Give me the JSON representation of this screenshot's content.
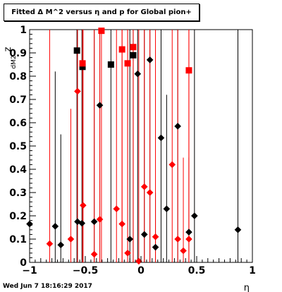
{
  "title": "Fitted Δ M^2 versus η and p for Global pion+",
  "timestamp": "Wed Jun  7 18:16:29 2017",
  "chart_data": {
    "type": "scatter",
    "xlabel": "η",
    "ylabel": "z_dM2",
    "ylabel_main": "z",
    "ylabel_sub": "dM2",
    "xlim": [
      -1.0,
      1.0
    ],
    "ylim": [
      0.0,
      1.0
    ],
    "x_ticks": [
      -1,
      -0.5,
      0,
      0.5,
      1
    ],
    "x_tick_labels": [
      "−1",
      "−0.5",
      "0",
      "0.5",
      "1"
    ],
    "y_ticks": [
      0,
      0.1,
      0.2,
      0.3,
      0.4,
      0.5,
      0.6,
      0.7,
      0.8,
      0.9,
      1
    ],
    "y_tick_labels": [
      "0",
      "0.1",
      "0.2",
      "0.3",
      "0.4",
      "0.5",
      "0.6",
      "0.7",
      "0.8",
      "0.9",
      "1"
    ],
    "grid": false,
    "colors": {
      "black": "#000000",
      "red": "#ff0000"
    },
    "series": [
      {
        "color": "#000000",
        "marker": "diamond",
        "points": [
          {
            "x": -1.0,
            "y": 0.165,
            "lo": 0.0,
            "hi": 0.165
          },
          {
            "x": -0.77,
            "y": 0.155,
            "lo": 0.0,
            "hi": 0.82
          },
          {
            "x": -0.72,
            "y": 0.075,
            "lo": 0.0,
            "hi": 0.55
          },
          {
            "x": -0.57,
            "y": 0.175,
            "lo": 0.0,
            "hi": 1.0
          },
          {
            "x": -0.53,
            "y": 0.168,
            "lo": 0.0,
            "hi": 1.0
          },
          {
            "x": -0.42,
            "y": 0.175,
            "lo": 0.0,
            "hi": 1.0
          },
          {
            "x": -0.37,
            "y": 0.675,
            "lo": 0.0,
            "hi": 1.0
          },
          {
            "x": -0.1,
            "y": 0.1,
            "lo": 0.0,
            "hi": 1.0
          },
          {
            "x": -0.03,
            "y": 0.81,
            "lo": 0.0,
            "hi": 1.0
          },
          {
            "x": 0.03,
            "y": 0.12,
            "lo": 0.0,
            "hi": 1.0
          },
          {
            "x": 0.08,
            "y": 0.87,
            "lo": 0.0,
            "hi": 1.0
          },
          {
            "x": 0.13,
            "y": 0.065,
            "lo": 0.0,
            "hi": 0.3
          },
          {
            "x": 0.18,
            "y": 0.535,
            "lo": 0.0,
            "hi": 1.0
          },
          {
            "x": 0.23,
            "y": 0.23,
            "lo": 0.0,
            "hi": 0.72
          },
          {
            "x": 0.33,
            "y": 0.585,
            "lo": 0.0,
            "hi": 1.0
          },
          {
            "x": 0.43,
            "y": 0.13,
            "lo": 0.0,
            "hi": 0.45
          },
          {
            "x": 0.48,
            "y": 0.2,
            "lo": 0.0,
            "hi": 1.0
          },
          {
            "x": 0.87,
            "y": 0.14,
            "lo": 0.0,
            "hi": 1.0
          }
        ]
      },
      {
        "color": "#000000",
        "marker": "square",
        "points": [
          {
            "x": -0.575,
            "y": 0.91,
            "lo": 0.0,
            "hi": 1.0
          },
          {
            "x": -0.525,
            "y": 0.84,
            "lo": 0.0,
            "hi": 1.0
          },
          {
            "x": -0.27,
            "y": 0.85,
            "lo": 0.0,
            "hi": 1.0
          },
          {
            "x": -0.07,
            "y": 0.89,
            "lo": 0.0,
            "hi": 1.0
          }
        ]
      },
      {
        "color": "#ff0000",
        "marker": "diamond",
        "points": [
          {
            "x": -0.82,
            "y": 0.08,
            "lo": 0.0,
            "hi": 1.0
          },
          {
            "x": -0.63,
            "y": 0.1,
            "lo": 0.0,
            "hi": 0.66
          },
          {
            "x": -0.57,
            "y": 0.735,
            "lo": 0.0,
            "hi": 1.0
          },
          {
            "x": -0.52,
            "y": 0.245,
            "lo": 0.0,
            "hi": 1.0
          },
          {
            "x": -0.42,
            "y": 0.035,
            "lo": 0.0,
            "hi": 1.0
          },
          {
            "x": -0.37,
            "y": 0.185,
            "lo": 0.0,
            "hi": 1.0
          },
          {
            "x": -0.22,
            "y": 0.23,
            "lo": 0.0,
            "hi": 1.0
          },
          {
            "x": -0.17,
            "y": 0.165,
            "lo": 0.0,
            "hi": 1.0
          },
          {
            "x": -0.12,
            "y": 0.04,
            "lo": 0.0,
            "hi": 1.0
          },
          {
            "x": -0.02,
            "y": 0.005,
            "lo": 0.0,
            "hi": 1.0
          },
          {
            "x": 0.03,
            "y": 0.325,
            "lo": 0.0,
            "hi": 1.0
          },
          {
            "x": 0.08,
            "y": 0.3,
            "lo": 0.0,
            "hi": 1.0
          },
          {
            "x": 0.13,
            "y": 0.11,
            "lo": 0.0,
            "hi": 1.0
          },
          {
            "x": 0.28,
            "y": 0.42,
            "lo": 0.0,
            "hi": 1.0
          },
          {
            "x": 0.33,
            "y": 0.1,
            "lo": 0.0,
            "hi": 1.0
          },
          {
            "x": 0.38,
            "y": 0.05,
            "lo": 0.0,
            "hi": 0.45
          },
          {
            "x": 0.43,
            "y": 0.1,
            "lo": 0.0,
            "hi": 1.0
          }
        ]
      },
      {
        "color": "#ff0000",
        "marker": "square",
        "points": [
          {
            "x": -0.525,
            "y": 0.855,
            "lo": 0.0,
            "hi": 1.0
          },
          {
            "x": -0.355,
            "y": 0.995,
            "lo": 0.0,
            "hi": 1.0
          },
          {
            "x": -0.17,
            "y": 0.915,
            "lo": 0.0,
            "hi": 1.0
          },
          {
            "x": -0.12,
            "y": 0.855,
            "lo": 0.0,
            "hi": 1.0
          },
          {
            "x": -0.07,
            "y": 0.925,
            "lo": 0.0,
            "hi": 1.0
          },
          {
            "x": 0.43,
            "y": 0.825,
            "lo": 0.0,
            "hi": 1.0
          }
        ]
      }
    ]
  }
}
